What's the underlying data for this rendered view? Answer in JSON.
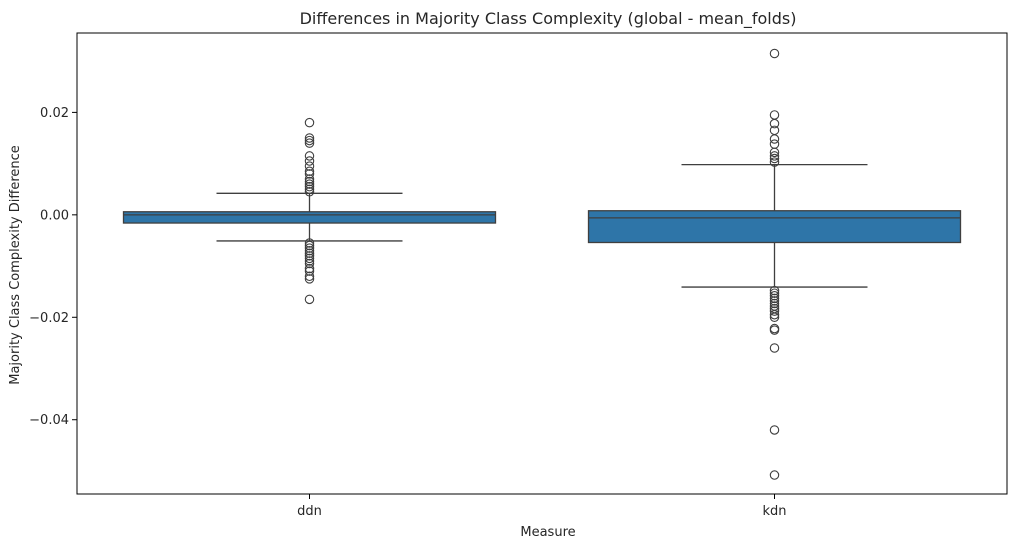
{
  "chart_data": {
    "type": "box",
    "title": "Differences in Majority Class Complexity (global - mean_folds)",
    "xlabel": "Measure",
    "ylabel": "Majority Class Complexity Difference",
    "ylim": [
      -0.0545,
      0.0355
    ],
    "yticks": [
      -0.04,
      -0.02,
      0.0,
      0.02
    ],
    "ytick_labels": [
      "−0.04",
      "−0.02",
      "0.00",
      "0.02"
    ],
    "categories": [
      "ddn",
      "kdn"
    ],
    "box_color": "#2e75a8",
    "series": [
      {
        "category": "ddn",
        "whisker_low": -0.0051,
        "q1": -0.0016,
        "median": 0.0,
        "q3": 0.0006,
        "whisker_high": 0.0042,
        "outliers": [
          0.018,
          0.015,
          0.0145,
          0.014,
          0.0115,
          0.0105,
          0.0095,
          0.0085,
          0.008,
          0.007,
          0.0065,
          0.006,
          0.0055,
          0.005,
          0.0045,
          -0.0055,
          -0.006,
          -0.0065,
          -0.007,
          -0.0075,
          -0.008,
          -0.0085,
          -0.009,
          -0.0095,
          -0.0105,
          -0.011,
          -0.012,
          -0.0125,
          -0.0165
        ]
      },
      {
        "category": "kdn",
        "whisker_low": -0.0141,
        "q1": -0.0054,
        "median": -0.0006,
        "q3": 0.0008,
        "whisker_high": 0.0098,
        "outliers": [
          0.0315,
          0.0195,
          0.0178,
          0.0165,
          0.0148,
          0.0138,
          0.0122,
          0.0115,
          0.011,
          0.0103,
          -0.0148,
          -0.0153,
          -0.0158,
          -0.0163,
          -0.0168,
          -0.0173,
          -0.0178,
          -0.0183,
          -0.0188,
          -0.0195,
          -0.02,
          -0.0222,
          -0.0225,
          -0.026,
          -0.042,
          -0.0508
        ]
      }
    ]
  }
}
